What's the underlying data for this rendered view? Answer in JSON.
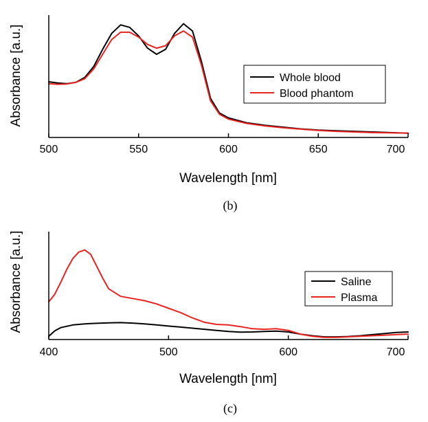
{
  "chart_data": [
    {
      "type": "line",
      "xlabel": "Wavelength [nm]",
      "ylabel": "Absorbance [a.u.]",
      "xlim": [
        500,
        700
      ],
      "ylim": [
        0,
        1
      ],
      "xticks": [
        "500",
        "550",
        "600",
        "650",
        "700"
      ],
      "grid": false,
      "legend_position": "right",
      "caption": "(b)",
      "series": [
        {
          "name": "Whole blood",
          "color": "#000000",
          "x": [
            500,
            505,
            510,
            515,
            520,
            525,
            530,
            535,
            540,
            545,
            550,
            555,
            560,
            565,
            570,
            575,
            580,
            585,
            590,
            595,
            600,
            610,
            620,
            630,
            640,
            650,
            660,
            670,
            680,
            690,
            700
          ],
          "y": [
            0.455,
            0.445,
            0.44,
            0.45,
            0.49,
            0.58,
            0.72,
            0.85,
            0.92,
            0.9,
            0.83,
            0.73,
            0.68,
            0.72,
            0.85,
            0.93,
            0.87,
            0.62,
            0.32,
            0.2,
            0.16,
            0.12,
            0.1,
            0.085,
            0.07,
            0.06,
            0.055,
            0.05,
            0.045,
            0.04,
            0.035
          ]
        },
        {
          "name": "Blood phantom",
          "color": "#e8231f",
          "x": [
            500,
            505,
            510,
            515,
            520,
            525,
            530,
            535,
            540,
            545,
            550,
            555,
            560,
            565,
            570,
            575,
            580,
            585,
            590,
            595,
            600,
            610,
            620,
            630,
            640,
            650,
            660,
            670,
            680,
            690,
            700
          ],
          "y": [
            0.44,
            0.435,
            0.437,
            0.45,
            0.48,
            0.56,
            0.68,
            0.8,
            0.86,
            0.86,
            0.82,
            0.76,
            0.73,
            0.75,
            0.83,
            0.87,
            0.82,
            0.59,
            0.3,
            0.19,
            0.15,
            0.115,
            0.095,
            0.08,
            0.068,
            0.058,
            0.05,
            0.045,
            0.04,
            0.038,
            0.035
          ]
        }
      ]
    },
    {
      "type": "line",
      "xlabel": "Wavelength [nm]",
      "ylabel": "Absorbance [a.u.]",
      "xlim": [
        400,
        700
      ],
      "ylim": [
        0,
        1
      ],
      "xticks": [
        "400",
        "500",
        "600",
        "700"
      ],
      "grid": false,
      "legend_position": "right",
      "caption": "(c)",
      "series": [
        {
          "name": "Saline",
          "color": "#000000",
          "x": [
            400,
            405,
            410,
            420,
            430,
            440,
            450,
            460,
            470,
            480,
            490,
            500,
            510,
            520,
            530,
            540,
            550,
            560,
            570,
            580,
            590,
            600,
            610,
            620,
            630,
            640,
            650,
            660,
            670,
            680,
            690,
            700
          ],
          "y": [
            0.03,
            0.08,
            0.11,
            0.135,
            0.145,
            0.15,
            0.155,
            0.157,
            0.152,
            0.145,
            0.135,
            0.125,
            0.115,
            0.105,
            0.095,
            0.085,
            0.075,
            0.068,
            0.07,
            0.075,
            0.078,
            0.07,
            0.05,
            0.035,
            0.025,
            0.025,
            0.028,
            0.035,
            0.045,
            0.055,
            0.065,
            0.07
          ]
        },
        {
          "name": "Plasma",
          "color": "#e8231f",
          "x": [
            400,
            405,
            410,
            415,
            420,
            425,
            430,
            435,
            440,
            445,
            450,
            460,
            470,
            480,
            490,
            500,
            510,
            520,
            530,
            540,
            550,
            560,
            570,
            580,
            590,
            600,
            610,
            620,
            630,
            640,
            650,
            660,
            670,
            680,
            690,
            700
          ],
          "y": [
            0.35,
            0.42,
            0.53,
            0.65,
            0.75,
            0.81,
            0.83,
            0.79,
            0.68,
            0.57,
            0.47,
            0.4,
            0.38,
            0.36,
            0.33,
            0.29,
            0.25,
            0.2,
            0.16,
            0.14,
            0.135,
            0.12,
            0.1,
            0.095,
            0.1,
            0.085,
            0.05,
            0.03,
            0.02,
            0.02,
            0.025,
            0.03,
            0.035,
            0.04,
            0.045,
            0.05
          ]
        }
      ]
    }
  ]
}
